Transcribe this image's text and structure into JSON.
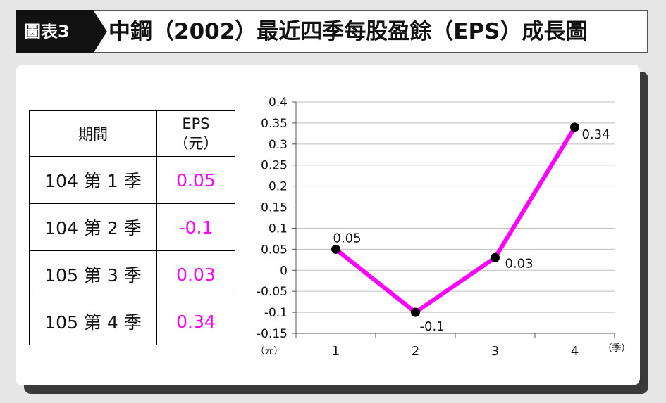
{
  "header": {
    "badge": "圖表3",
    "title": "中鋼（2002）最近四季每股盈餘（EPS）成長圖"
  },
  "table": {
    "col_period": "期間",
    "col_eps": "EPS",
    "col_eps_unit": "（元）",
    "rows": [
      {
        "period": "104 第 1 季",
        "eps": "0.05"
      },
      {
        "period": "104 第 2 季",
        "eps": "-0.1"
      },
      {
        "period": "105 第 3 季",
        "eps": "0.03"
      },
      {
        "period": "105 第 4 季",
        "eps": "0.34"
      }
    ]
  },
  "colors": {
    "accent": "#ff00ff",
    "badge_bg": "#111111",
    "grid": "#bfbfbf"
  },
  "chart_data": {
    "type": "line",
    "x": [
      1,
      2,
      3,
      4
    ],
    "values": [
      0.05,
      -0.1,
      0.03,
      0.34
    ],
    "data_labels": [
      "0.05",
      "-0.1",
      "0.03",
      "0.34"
    ],
    "ylim": [
      -0.15,
      0.4
    ],
    "yticks": [
      -0.15,
      -0.1,
      -0.05,
      0,
      0.05,
      0.1,
      0.15,
      0.2,
      0.25,
      0.3,
      0.35,
      0.4
    ],
    "ytick_labels": [
      "-0.15",
      "-0.1",
      "-0.05",
      "0",
      "0.05",
      "0.1",
      "0.15",
      "0.2",
      "0.25",
      "0.3",
      "0.35",
      "0.4"
    ],
    "xtick_labels": [
      "1",
      "2",
      "3",
      "4"
    ],
    "xlabel": "（季）",
    "ylabel": "（元）",
    "grid": true,
    "line_color": "#ff00ff",
    "marker_color": "#000000"
  }
}
